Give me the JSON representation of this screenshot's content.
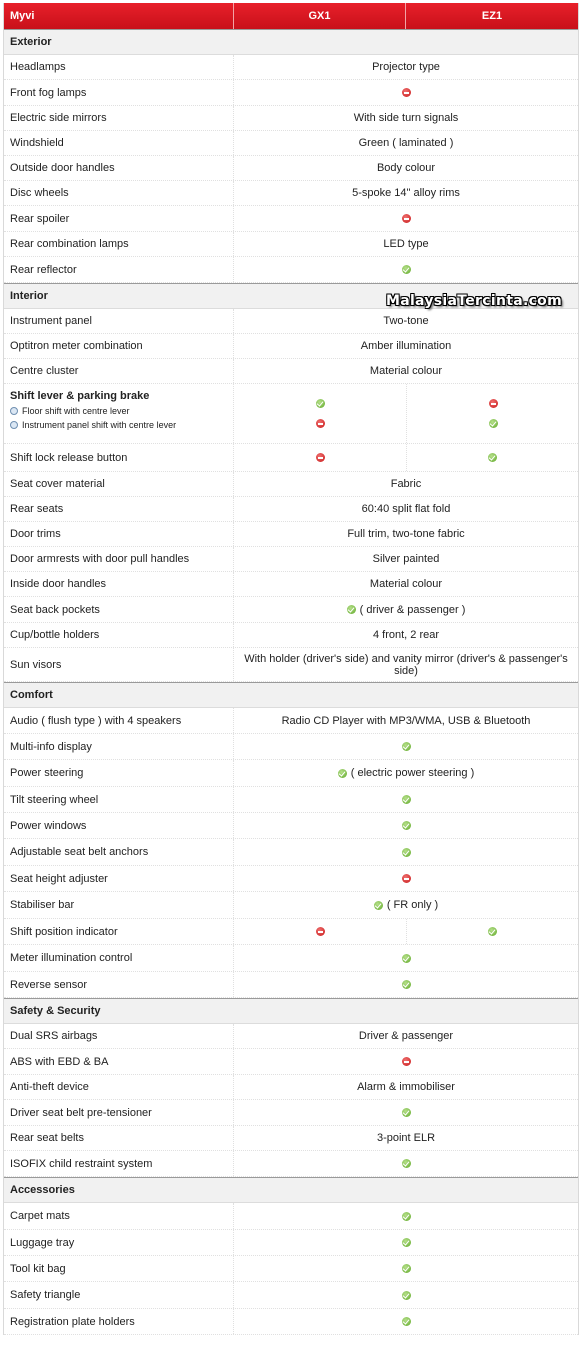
{
  "header": {
    "model": "Myvi",
    "gx1": "GX1",
    "ez1": "EZ1"
  },
  "watermark": "MalaysiaTercinta.com",
  "icons": {
    "yes": "check-icon",
    "no": "no-entry-icon",
    "yes_color": "#5fa828",
    "no_color": "#c81818"
  },
  "sections": {
    "exterior": {
      "title": "Exterior",
      "rows": [
        {
          "label": "Headlamps",
          "value": "Projector type"
        },
        {
          "label": "Front fog lamps",
          "icon": "no"
        },
        {
          "label": "Electric side mirrors",
          "value": "With side turn signals"
        },
        {
          "label": "Windshield",
          "value": "Green ( laminated )"
        },
        {
          "label": "Outside door handles",
          "value": "Body colour"
        },
        {
          "label": "Disc wheels",
          "value": "5-spoke 14\" alloy rims"
        },
        {
          "label": "Rear spoiler",
          "icon": "no"
        },
        {
          "label": "Rear combination lamps",
          "value": "LED type"
        },
        {
          "label": "Rear reflector",
          "icon": "yes"
        }
      ]
    },
    "interior": {
      "title": "Interior",
      "rows_a": [
        {
          "label": "Instrument panel",
          "value": "Two-tone"
        },
        {
          "label": "Optitron meter combination",
          "value": "Amber illumination"
        },
        {
          "label": "Centre cluster",
          "value": "Material colour"
        }
      ],
      "shift": {
        "title": "Shift lever & parking brake",
        "items": [
          {
            "label": "Floor shift with centre lever",
            "gx1": "yes",
            "ez1": "no"
          },
          {
            "label": "Instrument panel shift with centre lever",
            "gx1": "no",
            "ez1": "yes"
          }
        ]
      },
      "shift_lock": {
        "label": "Shift lock release button",
        "gx1": "no",
        "ez1": "yes"
      },
      "rows_b": [
        {
          "label": "Seat cover material",
          "value": "Fabric"
        },
        {
          "label": "Rear seats",
          "value": "60:40 split flat fold"
        },
        {
          "label": "Door trims",
          "value": "Full trim, two-tone fabric"
        },
        {
          "label": "Door armrests with door pull handles",
          "value": "Silver painted"
        },
        {
          "label": "Inside door handles",
          "value": "Material colour"
        },
        {
          "label": "Seat back pockets",
          "icon": "yes",
          "value": "( driver & passenger )"
        },
        {
          "label": "Cup/bottle holders",
          "value": "4 front, 2 rear"
        },
        {
          "label": "Sun visors",
          "value": "With holder (driver's side) and vanity mirror (driver's & passenger's side)"
        }
      ]
    },
    "comfort": {
      "title": "Comfort",
      "rows": [
        {
          "label": "Audio ( flush type ) with 4 speakers",
          "value": "Radio CD Player with MP3/WMA, USB & Bluetooth"
        },
        {
          "label": "Multi-info display",
          "icon": "yes"
        },
        {
          "label": "Power steering",
          "icon": "yes",
          "value": "( electric power steering )"
        },
        {
          "label": "Tilt steering wheel",
          "icon": "yes"
        },
        {
          "label": "Power windows",
          "icon": "yes"
        },
        {
          "label": "Adjustable seat belt anchors",
          "icon": "yes"
        },
        {
          "label": "Seat height adjuster",
          "icon": "no"
        },
        {
          "label": "Stabiliser bar",
          "icon": "yes",
          "value": "( FR only )"
        },
        {
          "label": "Shift position indicator",
          "gx1": "no",
          "ez1": "yes"
        },
        {
          "label": "Meter illumination control",
          "icon": "yes"
        },
        {
          "label": "Reverse sensor",
          "icon": "yes"
        }
      ]
    },
    "safety": {
      "title": "Safety & Security",
      "rows": [
        {
          "label": "Dual SRS airbags",
          "value": "Driver & passenger"
        },
        {
          "label": "ABS with EBD & BA",
          "icon": "no"
        },
        {
          "label": "Anti-theft device",
          "value": "Alarm & immobiliser"
        },
        {
          "label": "Driver seat belt pre-tensioner",
          "icon": "yes"
        },
        {
          "label": "Rear seat belts",
          "value": "3-point ELR"
        },
        {
          "label": "ISOFIX child restraint system",
          "icon": "yes"
        }
      ]
    },
    "accessories": {
      "title": "Accessories",
      "rows": [
        {
          "label": "Carpet mats",
          "icon": "yes"
        },
        {
          "label": "Luggage tray",
          "icon": "yes"
        },
        {
          "label": "Tool kit bag",
          "icon": "yes"
        },
        {
          "label": "Safety triangle",
          "icon": "yes"
        },
        {
          "label": "Registration plate holders",
          "icon": "yes"
        }
      ]
    }
  }
}
